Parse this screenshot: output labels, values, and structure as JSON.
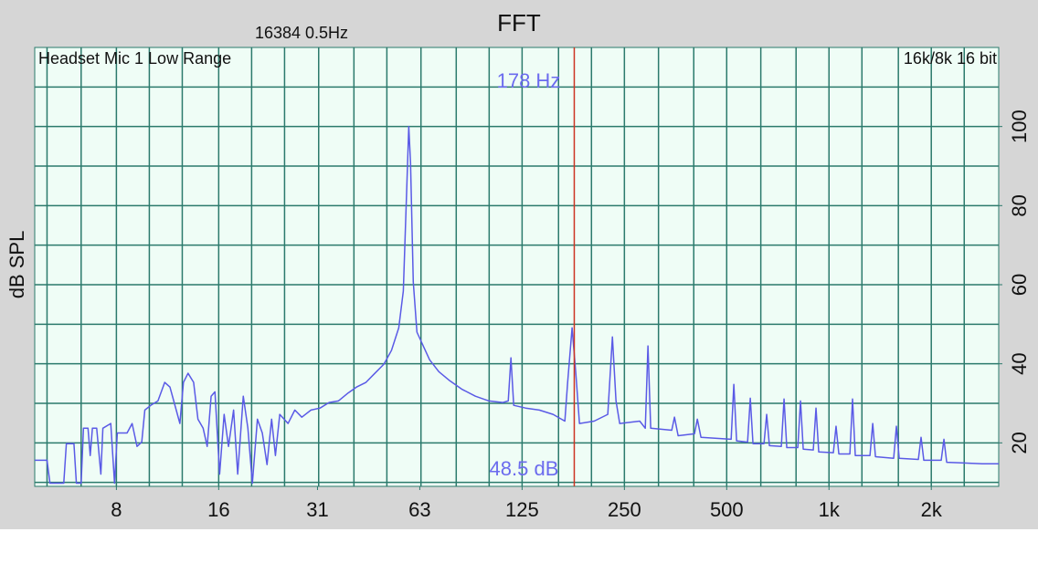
{
  "chart_data": {
    "type": "line",
    "title": "FFT",
    "subtitle": "16384  0.5Hz",
    "source_label": "Headset Mic 1 Low Range",
    "format_label": "16k/8k 16 bit",
    "ylabel": "dB SPL",
    "xscale": "log",
    "xlim": [
      4.6,
      3158
    ],
    "ylim": [
      9,
      120
    ],
    "xticks": [
      8,
      16,
      {
        "value": 31.25,
        "label": "31"
      },
      {
        "value": 62.5,
        "label": "63"
      },
      125,
      250,
      500,
      {
        "value": 1000,
        "label": "1k"
      },
      {
        "value": 2000,
        "label": "2k"
      }
    ],
    "yticks": [
      20,
      40,
      60,
      80,
      100
    ],
    "ygrid": [
      10,
      20,
      30,
      40,
      50,
      60,
      70,
      80,
      90,
      100,
      110
    ],
    "xgrid": [
      5,
      6.3,
      8,
      10,
      12.5,
      16,
      20,
      25,
      31.5,
      40,
      50,
      63,
      80,
      100,
      125,
      160,
      200,
      250,
      315,
      400,
      500,
      630,
      800,
      1000,
      1250,
      1600,
      2000,
      2500
    ],
    "grid": true,
    "color": "#5a5ae6",
    "cursor": {
      "x": 178,
      "x_label": "178 Hz",
      "y": 48.5,
      "y_label": "48.5 dB",
      "color": "#cc3322"
    },
    "x": [
      4.6,
      5.0,
      5.1,
      5.6,
      5.7,
      6.0,
      6.1,
      6.3,
      6.4,
      6.6,
      6.7,
      6.8,
      7.0,
      7.2,
      7.3,
      7.7,
      7.9,
      8.05,
      8.6,
      8.9,
      9.2,
      9.5,
      9.7,
      10.1,
      10.6,
      11.1,
      11.5,
      12.0,
      12.3,
      12.6,
      13.0,
      13.5,
      13.9,
      14.4,
      14.8,
      15.2,
      15.6,
      16.1,
      16.6,
      17.1,
      17.7,
      18.2,
      18.9,
      19.5,
      20.1,
      20.8,
      21.5,
      22.2,
      22.9,
      23.5,
      24.2,
      25.6,
      26.8,
      28.1,
      29.9,
      31.8,
      33.8,
      36.0,
      38.3,
      40.7,
      43.4,
      46.1,
      49.0,
      51.6,
      54.2,
      55.9,
      57.3,
      58.0,
      58.7,
      59.8,
      61.3,
      63.6,
      66.8,
      71.1,
      76.6,
      83.0,
      91.1,
      99.9,
      109.7,
      113.8,
      115.9,
      118.1,
      128,
      140.5,
      154.2,
      167.0,
      170.2,
      175.4,
      179.9,
      184.4,
      203.7,
      223.4,
      230.5,
      236.2,
      242.2,
      277.4,
      288,
      293.3,
      298.8,
      344.6,
      351,
      359.8,
      402,
      409.8,
      420,
      515.3,
      524.8,
      534.7,
      576.0,
      586.7,
      597.5,
      643.7,
      655.6,
      667.8,
      724,
      737.5,
      751.2,
      809.5,
      824.5,
      839.9,
      899,
      915.8,
      932.8,
      1030,
      1049,
      1069,
      1152,
      1173,
      1195,
      1320,
      1345,
      1370,
      1550,
      1579,
      1609,
      1832,
      1866,
      1901,
      2139,
      2179,
      2220,
      2497,
      2825,
      3158
    ],
    "values": [
      15.6,
      15.6,
      9.8,
      9.8,
      19.8,
      19.8,
      9.8,
      9.8,
      23.7,
      23.7,
      16.8,
      23.7,
      23.7,
      12.1,
      23.7,
      24.9,
      9.8,
      22.5,
      22.5,
      24.9,
      19.1,
      20.2,
      28.3,
      29.5,
      30.6,
      35.3,
      34.1,
      28.3,
      24.9,
      35.3,
      37.6,
      35.3,
      26.0,
      23.7,
      19.1,
      31.8,
      32.9,
      12.1,
      27.2,
      19.1,
      28.3,
      12.1,
      31.8,
      23.7,
      9.8,
      26.0,
      22.5,
      14.5,
      26.0,
      16.8,
      27.2,
      24.9,
      28.3,
      26.5,
      28.3,
      28.8,
      30.2,
      30.6,
      32.5,
      34.1,
      35.3,
      37.6,
      39.9,
      43.4,
      49.1,
      58.4,
      86.1,
      100,
      90.8,
      60.7,
      48.0,
      45.0,
      41.0,
      38.0,
      35.7,
      33.6,
      31.8,
      30.6,
      30.2,
      30.6,
      41.5,
      29.5,
      28.8,
      28.3,
      27.2,
      25.5,
      35.3,
      49.1,
      37.6,
      24.9,
      25.5,
      27.2,
      46.8,
      30.6,
      24.9,
      25.5,
      23.7,
      44.5,
      23.7,
      23.2,
      26.5,
      21.8,
      22.3,
      26.0,
      21.4,
      20.9,
      34.8,
      20.5,
      20.2,
      31.3,
      19.8,
      19.8,
      27.2,
      19.3,
      19.1,
      31.1,
      18.8,
      18.8,
      30.6,
      18.4,
      18.2,
      28.8,
      17.7,
      17.5,
      24.2,
      17.2,
      17.2,
      31.1,
      16.8,
      16.8,
      24.9,
      16.5,
      16.1,
      24.2,
      16.1,
      15.8,
      21.4,
      15.6,
      15.6,
      20.9,
      15.1,
      14.9,
      14.7,
      14.7
    ]
  }
}
